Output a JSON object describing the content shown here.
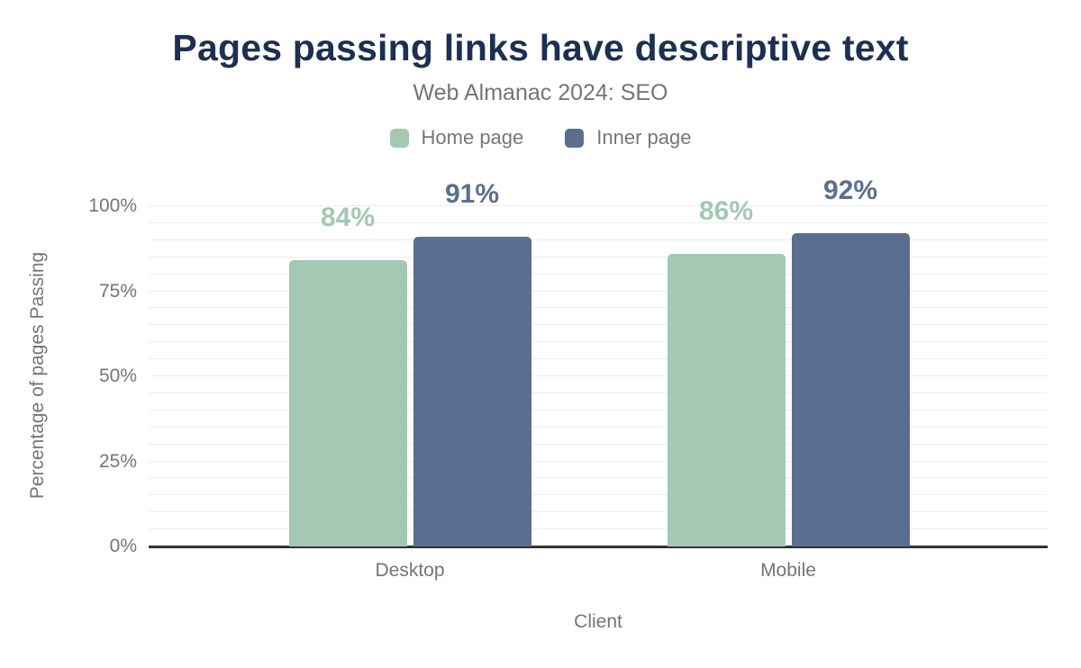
{
  "chart_data": {
    "type": "bar",
    "title": "Pages passing links have descriptive text",
    "subtitle": "Web Almanac 2024: SEO",
    "categories": [
      "Desktop",
      "Mobile"
    ],
    "series": [
      {
        "name": "Home page",
        "color": "#a4c8b4",
        "values": [
          84,
          86
        ],
        "data_labels": [
          "84%",
          "86%"
        ]
      },
      {
        "name": "Inner page",
        "color": "#5c6e8f",
        "values": [
          91,
          92
        ],
        "data_labels": [
          "91%",
          "92%"
        ]
      }
    ],
    "xlabel": "Client",
    "ylabel": "Percentage of pages Passing",
    "ylim": [
      0,
      100
    ],
    "ytick_values": [
      0,
      25,
      50,
      75,
      100
    ],
    "ytick_labels": [
      "0%",
      "25%",
      "50%",
      "75%",
      "100%"
    ],
    "minor_grid_step": 5,
    "grid": true,
    "legend_position": "top",
    "data_labels_colored_like_bars": true
  },
  "colors": {
    "title": "#1d3052",
    "subtitle": "#757575",
    "axis_text": "#75757a",
    "gridline": "#ededed",
    "axis_line": "#333333",
    "background": "#ffffff"
  }
}
